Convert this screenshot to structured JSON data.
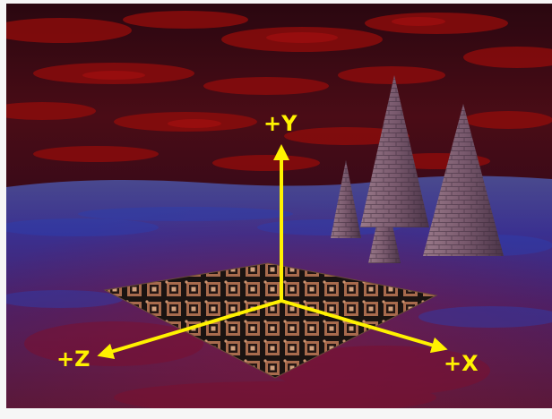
{
  "scene": {
    "axes": {
      "y_label": "+Y",
      "x_label": "+X",
      "z_label": "+Z"
    },
    "colors": {
      "axis": "#fff200",
      "sky_base": "#3a0a12",
      "sky_cloud": "#8a0c0c",
      "ground_base": "#3a2a6e",
      "ground_highlight": "#2c3fb0",
      "ground_red": "#7a1030",
      "pyramid_base": "#7a5a6a",
      "floor_tile_light": "#d8946a",
      "floor_tile_dark": "#1a1212"
    }
  }
}
